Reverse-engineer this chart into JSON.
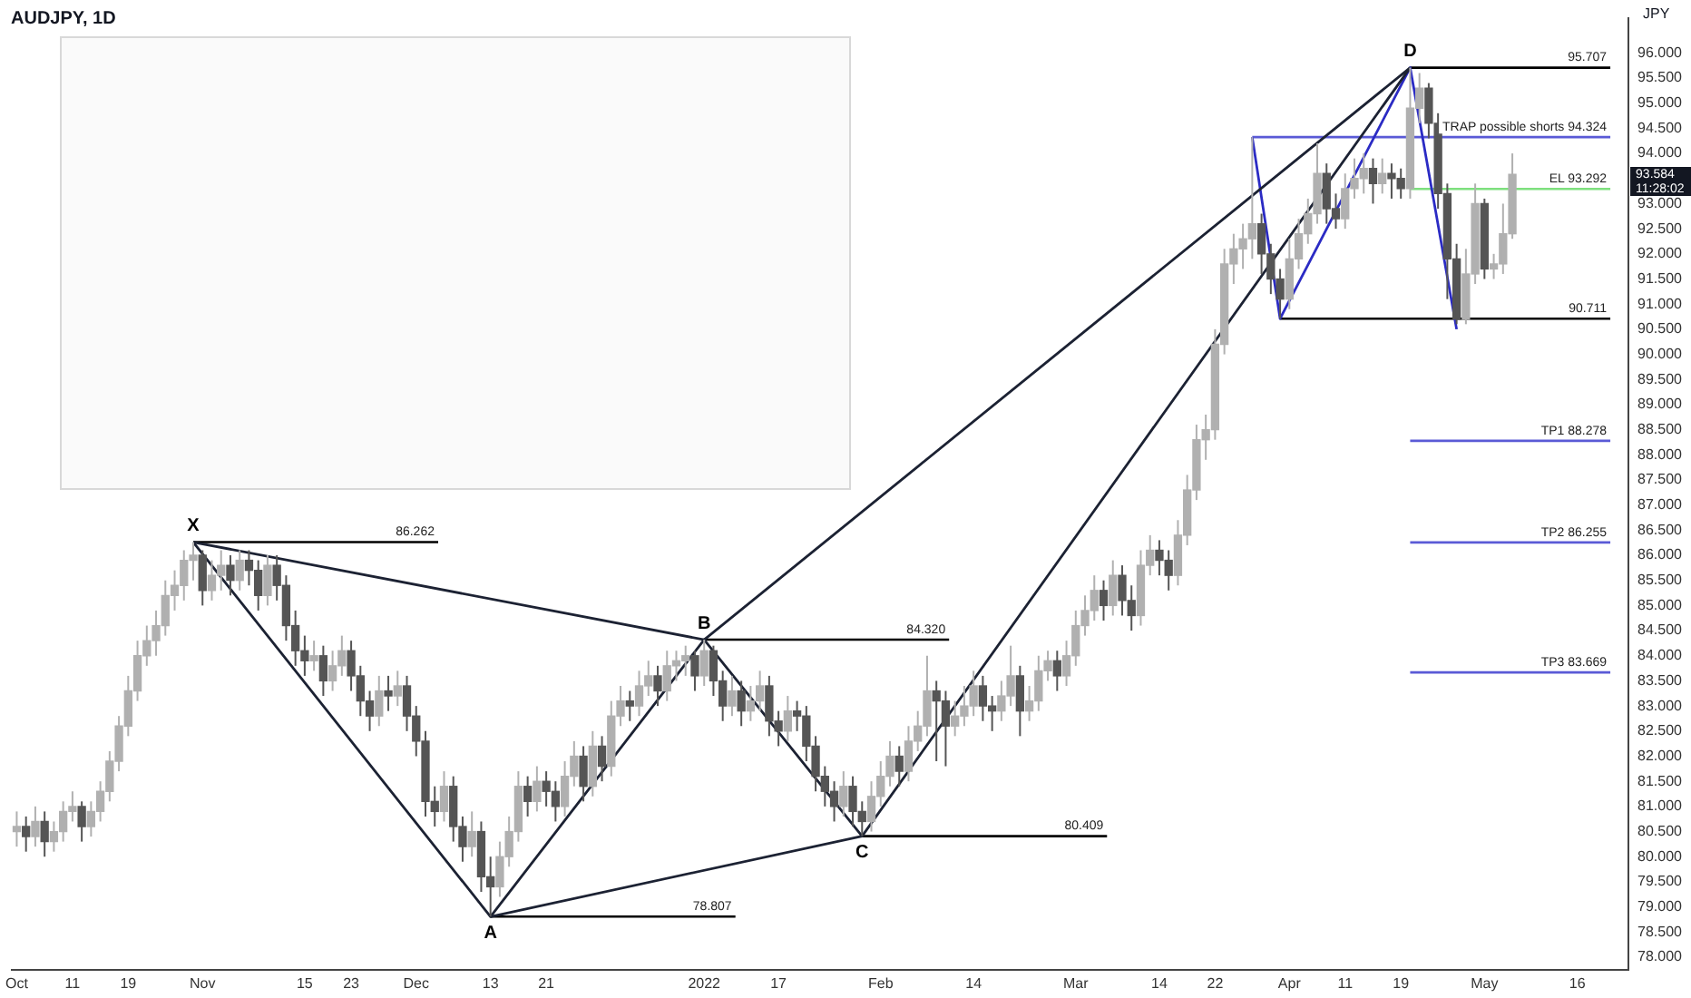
{
  "chart_data": {
    "type": "candlestick",
    "title": "AUDJPY, 1D",
    "ylabel": "JPY",
    "colors": [
      "#b0b0b0",
      "#555555",
      "#b0b0b0",
      "#555555",
      "#b0b0b0",
      "#b0b0b0",
      "#b0b0b0",
      "#555555",
      "#b0b0b0",
      "#b0b0b0",
      "#b0b0b0",
      "#b0b0b0",
      "#b0b0b0",
      "#b0b0b0",
      "#b0b0b0",
      "#b0b0b0",
      "#b0b0b0",
      "#b0b0b0",
      "#b0b0b0",
      "#b0b0b0",
      "#555555",
      "#b0b0b0",
      "#b0b0b0",
      "#555555",
      "#b0b0b0",
      "#555555",
      "#555555",
      "#b0b0b0",
      "#555555",
      "#555555",
      "#555555",
      "#555555",
      "#b0b0b0",
      "#555555",
      "#b0b0b0",
      "#b0b0b0",
      "#555555",
      "#555555",
      "#555555",
      "#b0b0b0",
      "#555555",
      "#b0b0b0",
      "#555555",
      "#555555",
      "#555555",
      "#555555",
      "#b0b0b0",
      "#555555",
      "#555555",
      "#b0b0b0",
      "#555555",
      "#555555",
      "#b0b0b0",
      "#b0b0b0",
      "#b0b0b0",
      "#555555",
      "#b0b0b0",
      "#555555",
      "#555555",
      "#b0b0b0",
      "#b0b0b0",
      "#555555",
      "#b0b0b0",
      "#555555",
      "#b0b0b0",
      "#b0b0b0",
      "#555555",
      "#b0b0b0",
      "#b0b0b0",
      "#555555",
      "#b0b0b0",
      "#b0b0b0",
      "#b0b0b0",
      "#555555",
      "#b0b0b0",
      "#555555",
      "#555555",
      "#b0b0b0",
      "#555555",
      "#b0b0b0",
      "#b0b0b0",
      "#555555",
      "#555555",
      "#b0b0b0",
      "#555555",
      "#555555",
      "#555555",
      "#555555",
      "#555555",
      "#b0b0b0",
      "#555555",
      "#555555",
      "#b0b0b0",
      "#b0b0b0",
      "#b0b0b0",
      "#555555",
      "#b0b0b0",
      "#b0b0b0",
      "#b0b0b0",
      "#555555",
      "#555555",
      "#b0b0b0",
      "#b0b0b0",
      "#b0b0b0",
      "#555555",
      "#555555",
      "#b0b0b0",
      "#b0b0b0",
      "#555555",
      "#b0b0b0",
      "#b0b0b0",
      "#b0b0b0",
      "#555555",
      "#b0b0b0",
      "#b0b0b0",
      "#b0b0b0",
      "#b0b0b0",
      "#555555",
      "#b0b0b0",
      "#555555",
      "#555555",
      "#b0b0b0",
      "#b0b0b0",
      "#555555",
      "#555555",
      "#b0b0b0",
      "#b0b0b0",
      "#b0b0b0",
      "#b0b0b0",
      "#b0b0b0",
      "#b0b0b0",
      "#b0b0b0",
      "#b0b0b0",
      "#b0b0b0",
      "#555555",
      "#555555",
      "#555555",
      "#b0b0b0",
      "#b0b0b0",
      "#b0b0b0",
      "#b0b0b0",
      "#555555",
      "#555555",
      "#b0b0b0",
      "#b0b0b0",
      "#b0b0b0",
      "#555555",
      "#b0b0b0",
      "#555555",
      "#555555",
      "#b0b0b0",
      "#b0b0b0",
      "#555555",
      "#555555",
      "#555555",
      "#555555",
      "#b0b0b0",
      "#b0b0b0",
      "#555555",
      "#b0b0b0",
      "#b0b0b0",
      "#b0b0b0",
      null,
      null,
      null,
      null,
      null,
      null,
      null,
      null,
      null,
      null,
      null,
      null
    ],
    "categories": [
      "Oct",
      null,
      null,
      null,
      null,
      null,
      "11",
      null,
      null,
      null,
      null,
      null,
      "19",
      null,
      null,
      null,
      null,
      null,
      null,
      null,
      "Nov",
      null,
      null,
      null,
      null,
      null,
      null,
      null,
      null,
      null,
      null,
      "15",
      null,
      null,
      null,
      null,
      "23",
      null,
      null,
      null,
      null,
      null,
      null,
      "Dec",
      null,
      null,
      null,
      null,
      null,
      null,
      null,
      "13",
      null,
      null,
      null,
      null,
      null,
      "21",
      null,
      null,
      null,
      null,
      null,
      null,
      null,
      null,
      null,
      null,
      null,
      null,
      null,
      null,
      null,
      null,
      "2022",
      null,
      null,
      null,
      null,
      null,
      null,
      null,
      "17",
      null,
      null,
      null,
      null,
      null,
      null,
      null,
      null,
      null,
      null,
      "Feb",
      null,
      null,
      null,
      null,
      null,
      null,
      null,
      null,
      null,
      "14",
      null,
      null,
      null,
      null,
      null,
      null,
      null,
      null,
      null,
      null,
      "Mar",
      null,
      null,
      null,
      null,
      null,
      null,
      null,
      null,
      "14",
      null,
      null,
      null,
      null,
      null,
      "22",
      null,
      null,
      null,
      null,
      null,
      null,
      null,
      "Apr",
      null,
      null,
      null,
      null,
      null,
      "11",
      null,
      null,
      null,
      null,
      null,
      "19",
      null,
      null,
      null,
      null,
      null,
      null,
      null,
      null,
      "May",
      null,
      null,
      null,
      null,
      null,
      null,
      null,
      null,
      null,
      "16",
      null,
      null,
      null,
      null,
      null
    ],
    "ohlc": [
      [
        80.5,
        80.9,
        80.2,
        80.6
      ],
      [
        80.6,
        80.8,
        80.1,
        80.4
      ],
      [
        80.4,
        81.0,
        80.2,
        80.7
      ],
      [
        80.7,
        80.9,
        80.0,
        80.3
      ],
      [
        80.3,
        80.7,
        80.1,
        80.5
      ],
      [
        80.5,
        81.1,
        80.3,
        80.9
      ],
      [
        80.9,
        81.3,
        80.7,
        81.0
      ],
      [
        81.0,
        81.1,
        80.3,
        80.6
      ],
      [
        80.6,
        81.1,
        80.4,
        80.9
      ],
      [
        80.9,
        81.5,
        80.7,
        81.3
      ],
      [
        81.3,
        82.1,
        81.1,
        81.9
      ],
      [
        81.9,
        82.8,
        81.7,
        82.6
      ],
      [
        82.6,
        83.6,
        82.4,
        83.3
      ],
      [
        83.3,
        84.3,
        83.1,
        84.0
      ],
      [
        84.0,
        84.6,
        83.8,
        84.3
      ],
      [
        84.3,
        84.9,
        84.0,
        84.6
      ],
      [
        84.6,
        85.5,
        84.4,
        85.2
      ],
      [
        85.2,
        85.7,
        84.9,
        85.4
      ],
      [
        85.4,
        86.1,
        85.1,
        85.9
      ],
      [
        85.9,
        86.262,
        85.5,
        86.0
      ],
      [
        86.0,
        86.1,
        85.0,
        85.3
      ],
      [
        85.3,
        85.9,
        85.1,
        85.6
      ],
      [
        85.6,
        86.1,
        85.3,
        85.8
      ],
      [
        85.8,
        86.0,
        85.2,
        85.5
      ],
      [
        85.5,
        86.1,
        85.3,
        85.9
      ],
      [
        85.9,
        86.1,
        85.4,
        85.7
      ],
      [
        85.7,
        85.9,
        84.9,
        85.2
      ],
      [
        85.2,
        86.0,
        85.0,
        85.8
      ],
      [
        85.8,
        86.0,
        85.1,
        85.4
      ],
      [
        85.4,
        85.6,
        84.3,
        84.6
      ],
      [
        84.6,
        84.9,
        83.8,
        84.1
      ],
      [
        84.1,
        84.4,
        83.6,
        83.9
      ],
      [
        83.9,
        84.3,
        83.7,
        84.0
      ],
      [
        84.0,
        84.2,
        83.2,
        83.5
      ],
      [
        83.5,
        84.1,
        83.3,
        83.8
      ],
      [
        83.8,
        84.4,
        83.6,
        84.1
      ],
      [
        84.1,
        84.3,
        83.3,
        83.6
      ],
      [
        83.6,
        83.8,
        82.8,
        83.1
      ],
      [
        83.1,
        83.3,
        82.5,
        82.8
      ],
      [
        82.8,
        83.6,
        82.6,
        83.3
      ],
      [
        83.3,
        83.6,
        82.9,
        83.2
      ],
      [
        83.2,
        83.7,
        83.0,
        83.4
      ],
      [
        83.4,
        83.6,
        82.5,
        82.8
      ],
      [
        82.8,
        83.0,
        82.0,
        82.3
      ],
      [
        82.3,
        82.5,
        80.8,
        81.1
      ],
      [
        81.1,
        81.4,
        80.6,
        80.9
      ],
      [
        80.9,
        81.7,
        80.7,
        81.4
      ],
      [
        81.4,
        81.6,
        80.3,
        80.6
      ],
      [
        80.6,
        80.8,
        79.9,
        80.2
      ],
      [
        80.2,
        80.9,
        80.0,
        80.5
      ],
      [
        80.5,
        80.7,
        79.3,
        79.6
      ],
      [
        79.6,
        80.0,
        78.807,
        79.4
      ],
      [
        79.4,
        80.3,
        79.2,
        80.0
      ],
      [
        80.0,
        80.8,
        79.8,
        80.5
      ],
      [
        80.5,
        81.7,
        80.3,
        81.4
      ],
      [
        81.4,
        81.6,
        80.8,
        81.1
      ],
      [
        81.1,
        81.8,
        80.9,
        81.5
      ],
      [
        81.5,
        81.7,
        81.0,
        81.3
      ],
      [
        81.3,
        81.5,
        80.7,
        81.0
      ],
      [
        81.0,
        81.9,
        80.8,
        81.6
      ],
      [
        81.6,
        82.3,
        81.4,
        82.0
      ],
      [
        82.0,
        82.2,
        81.1,
        81.4
      ],
      [
        81.4,
        82.5,
        81.2,
        82.2
      ],
      [
        82.2,
        82.4,
        81.5,
        81.8
      ],
      [
        81.8,
        83.1,
        81.6,
        82.8
      ],
      [
        82.8,
        83.4,
        82.6,
        83.1
      ],
      [
        83.1,
        83.3,
        82.7,
        83.0
      ],
      [
        83.0,
        83.7,
        82.8,
        83.4
      ],
      [
        83.4,
        83.9,
        83.2,
        83.6
      ],
      [
        83.6,
        83.8,
        83.0,
        83.3
      ],
      [
        83.3,
        84.1,
        83.1,
        83.8
      ],
      [
        83.8,
        84.1,
        83.5,
        83.9
      ],
      [
        83.9,
        84.2,
        83.6,
        84.0
      ],
      [
        84.0,
        84.1,
        83.3,
        83.6
      ],
      [
        83.6,
        84.32,
        83.4,
        84.1
      ],
      [
        84.1,
        84.2,
        83.2,
        83.5
      ],
      [
        83.5,
        83.7,
        82.7,
        83.0
      ],
      [
        83.0,
        83.6,
        82.8,
        83.3
      ],
      [
        83.3,
        83.5,
        82.6,
        82.9
      ],
      [
        82.9,
        83.4,
        82.7,
        83.1
      ],
      [
        83.1,
        83.7,
        82.9,
        83.4
      ],
      [
        83.4,
        83.6,
        82.4,
        82.7
      ],
      [
        82.7,
        82.9,
        82.2,
        82.5
      ],
      [
        82.5,
        83.2,
        82.3,
        82.9
      ],
      [
        82.9,
        83.1,
        82.5,
        82.8
      ],
      [
        82.8,
        83.0,
        81.9,
        82.2
      ],
      [
        82.2,
        82.4,
        81.3,
        81.6
      ],
      [
        81.6,
        81.8,
        81.0,
        81.3
      ],
      [
        81.3,
        81.5,
        80.7,
        81.0
      ],
      [
        81.0,
        81.7,
        80.8,
        81.4
      ],
      [
        81.4,
        81.6,
        80.6,
        80.9
      ],
      [
        80.9,
        81.1,
        80.409,
        80.7
      ],
      [
        80.7,
        81.5,
        80.5,
        81.2
      ],
      [
        81.2,
        81.9,
        81.0,
        81.6
      ],
      [
        81.6,
        82.3,
        81.4,
        82.0
      ],
      [
        82.0,
        82.2,
        81.4,
        81.7
      ],
      [
        81.7,
        82.6,
        81.5,
        82.3
      ],
      [
        82.3,
        82.9,
        82.1,
        82.6
      ],
      [
        82.6,
        84.0,
        82.4,
        83.3
      ],
      [
        83.3,
        83.5,
        81.9,
        83.1
      ],
      [
        83.1,
        83.3,
        81.8,
        82.6
      ],
      [
        82.6,
        83.1,
        82.4,
        82.8
      ],
      [
        82.8,
        83.4,
        82.6,
        83.0
      ],
      [
        83.0,
        83.7,
        82.8,
        83.4
      ],
      [
        83.4,
        83.6,
        82.7,
        83.0
      ],
      [
        83.0,
        83.2,
        82.5,
        82.9
      ],
      [
        82.9,
        83.5,
        82.7,
        83.2
      ],
      [
        83.2,
        84.2,
        83.0,
        83.6
      ],
      [
        83.6,
        83.8,
        82.4,
        82.9
      ],
      [
        82.9,
        83.4,
        82.7,
        83.1
      ],
      [
        83.1,
        84.0,
        82.9,
        83.7
      ],
      [
        83.7,
        84.1,
        83.5,
        83.9
      ],
      [
        83.9,
        84.1,
        83.3,
        83.6
      ],
      [
        83.6,
        84.3,
        83.4,
        84.0
      ],
      [
        84.0,
        84.9,
        83.8,
        84.6
      ],
      [
        84.6,
        85.2,
        84.4,
        84.9
      ],
      [
        84.9,
        85.6,
        84.7,
        85.3
      ],
      [
        85.3,
        85.5,
        84.7,
        85.0
      ],
      [
        85.0,
        85.9,
        84.8,
        85.6
      ],
      [
        85.6,
        85.8,
        84.8,
        85.1
      ],
      [
        85.1,
        85.4,
        84.5,
        84.8
      ],
      [
        84.8,
        86.1,
        84.6,
        85.8
      ],
      [
        85.8,
        86.4,
        85.6,
        86.1
      ],
      [
        86.1,
        86.3,
        85.6,
        85.9
      ],
      [
        85.9,
        86.1,
        85.3,
        85.6
      ],
      [
        85.6,
        86.7,
        85.4,
        86.4
      ],
      [
        86.4,
        87.6,
        86.2,
        87.3
      ],
      [
        87.3,
        88.6,
        87.1,
        88.3
      ],
      [
        88.3,
        88.8,
        87.9,
        88.5
      ],
      [
        88.5,
        90.5,
        88.3,
        90.2
      ],
      [
        90.2,
        92.1,
        90.0,
        91.8
      ],
      [
        91.8,
        92.4,
        91.4,
        92.1
      ],
      [
        92.1,
        92.6,
        91.7,
        92.3
      ],
      [
        92.3,
        94.324,
        91.9,
        92.6
      ],
      [
        92.6,
        92.8,
        91.6,
        92.0
      ],
      [
        92.0,
        92.2,
        91.2,
        91.5
      ],
      [
        91.5,
        91.7,
        90.711,
        91.1
      ],
      [
        91.1,
        92.3,
        90.9,
        91.9
      ],
      [
        91.9,
        92.7,
        91.7,
        92.4
      ],
      [
        92.4,
        93.1,
        92.2,
        92.8
      ],
      [
        92.8,
        94.2,
        92.6,
        93.6
      ],
      [
        93.6,
        93.8,
        92.6,
        92.9
      ],
      [
        92.9,
        93.2,
        92.5,
        92.7
      ],
      [
        92.7,
        93.6,
        92.5,
        93.3
      ],
      [
        93.3,
        93.9,
        93.1,
        93.5
      ],
      [
        93.5,
        94.0,
        93.2,
        93.7
      ],
      [
        93.7,
        93.9,
        93.0,
        93.4
      ],
      [
        93.4,
        93.9,
        93.2,
        93.6
      ],
      [
        93.6,
        93.8,
        93.1,
        93.5
      ],
      [
        93.5,
        93.7,
        93.1,
        93.3
      ],
      [
        93.3,
        95.707,
        93.1,
        94.9
      ],
      [
        94.9,
        95.6,
        94.6,
        95.3
      ],
      [
        95.3,
        95.4,
        94.3,
        94.6
      ],
      [
        94.6,
        94.8,
        92.9,
        93.2
      ],
      [
        93.2,
        93.4,
        91.1,
        91.9
      ],
      [
        91.9,
        92.2,
        90.6,
        90.7
      ],
      [
        90.7,
        92.1,
        90.6,
        91.6
      ],
      [
        91.6,
        93.4,
        91.4,
        93.0
      ],
      [
        93.0,
        93.1,
        91.5,
        91.7
      ],
      [
        91.7,
        92.0,
        91.5,
        91.8
      ],
      [
        91.8,
        93.0,
        91.6,
        92.4
      ],
      [
        92.4,
        94.0,
        92.3,
        93.584
      ],
      null,
      null,
      null,
      null,
      null,
      null,
      null,
      null,
      null,
      null,
      null,
      null
    ],
    "series": [
      {
        "type": "line",
        "color": "#1c2233",
        "values": [
          null,
          null,
          null,
          null,
          null,
          null,
          null,
          null,
          null,
          null,
          null,
          null,
          null,
          null,
          null,
          null,
          null,
          null,
          null,
          86.262,
          null,
          null,
          null,
          null,
          null,
          null,
          null,
          null,
          null,
          null,
          null,
          null,
          null,
          null,
          null,
          null,
          null,
          null,
          null,
          null,
          null,
          null,
          null,
          null,
          null,
          null,
          null,
          null,
          null,
          null,
          null,
          78.807,
          null,
          null,
          null,
          null,
          null,
          null,
          null,
          null,
          null,
          null,
          null,
          null,
          null,
          null,
          null,
          null,
          null,
          null,
          null,
          null,
          null,
          null,
          84.32,
          null,
          null,
          null,
          null,
          null,
          null,
          null,
          null,
          null,
          null,
          null,
          null,
          null,
          null,
          null,
          null,
          80.409,
          null,
          null,
          null,
          null,
          null,
          null,
          null,
          null,
          null,
          null,
          null,
          null,
          null,
          null,
          null,
          null,
          null,
          null,
          null,
          null,
          null,
          null,
          null,
          null,
          null,
          null,
          null,
          null,
          null,
          null,
          null,
          null,
          null,
          null,
          null,
          null,
          null,
          null,
          null,
          null,
          null,
          null,
          null,
          null,
          null,
          null,
          null,
          null,
          null,
          null,
          null,
          null,
          null,
          null,
          null,
          null,
          null,
          null,
          95.707,
          null,
          null,
          null,
          null,
          null,
          null,
          null,
          null,
          null,
          null,
          null,
          null,
          null,
          null,
          null,
          null,
          null,
          null,
          null,
          null,
          null,
          null,
          null
        ]
      },
      {
        "type": "line",
        "color": "#1c2233",
        "values": [
          null,
          null,
          null,
          null,
          null,
          null,
          null,
          null,
          null,
          null,
          null,
          null,
          null,
          null,
          null,
          null,
          null,
          null,
          null,
          86.262,
          null,
          null,
          null,
          null,
          null,
          null,
          null,
          null,
          null,
          null,
          null,
          null,
          null,
          null,
          null,
          null,
          null,
          null,
          null,
          null,
          null,
          null,
          null,
          null,
          null,
          null,
          null,
          null,
          null,
          null,
          null,
          null,
          null,
          null,
          null,
          null,
          null,
          null,
          null,
          null,
          null,
          null,
          null,
          null,
          null,
          null,
          null,
          null,
          null,
          null,
          null,
          null,
          null,
          null,
          84.32,
          null,
          null,
          null,
          null,
          null,
          null,
          null,
          null,
          null,
          null,
          null,
          null,
          null,
          null,
          null,
          null,
          null,
          null,
          null,
          null,
          null,
          null,
          null,
          null,
          null,
          null,
          null,
          null,
          null,
          null,
          null,
          null,
          null,
          null,
          null,
          null,
          null,
          null,
          null,
          null,
          null,
          null,
          null,
          null,
          null,
          null,
          null,
          null,
          null,
          null,
          null,
          null,
          null,
          null,
          null,
          null,
          null,
          null,
          null,
          null,
          null,
          null,
          null,
          null,
          null,
          null,
          null,
          null,
          null,
          null,
          null,
          null,
          null,
          null,
          null,
          95.707,
          null,
          null,
          null,
          null,
          null,
          null,
          null,
          null,
          null,
          null,
          null,
          null,
          null,
          null,
          null,
          null,
          null,
          null,
          null,
          null,
          null,
          null,
          null
        ]
      },
      {
        "type": "line",
        "color": "#1c2233",
        "values": [
          null,
          null,
          null,
          null,
          null,
          null,
          null,
          null,
          null,
          null,
          null,
          null,
          null,
          null,
          null,
          null,
          null,
          null,
          null,
          null,
          null,
          null,
          null,
          null,
          null,
          null,
          null,
          null,
          null,
          null,
          null,
          null,
          null,
          null,
          null,
          null,
          null,
          null,
          null,
          null,
          null,
          null,
          null,
          null,
          null,
          null,
          null,
          null,
          null,
          null,
          null,
          78.807,
          null,
          null,
          null,
          null,
          null,
          null,
          null,
          null,
          null,
          null,
          null,
          null,
          null,
          null,
          null,
          null,
          null,
          null,
          null,
          null,
          null,
          null,
          null,
          null,
          null,
          null,
          null,
          null,
          null,
          null,
          null,
          null,
          null,
          null,
          null,
          null,
          null,
          null,
          null,
          80.409,
          null,
          null,
          null,
          null,
          null,
          null,
          null,
          null,
          null,
          null,
          null,
          null,
          null,
          null,
          null,
          null,
          null,
          null,
          null,
          null,
          null,
          null,
          null,
          null,
          null,
          null,
          null,
          null,
          null,
          null,
          null,
          null,
          null,
          null,
          null,
          null,
          null,
          null,
          null,
          null,
          null,
          null,
          null,
          null,
          null,
          null,
          null,
          null,
          null,
          null,
          null,
          null,
          null,
          null,
          null,
          null,
          null,
          null,
          null,
          null,
          null,
          null,
          null,
          null,
          null,
          null,
          null,
          null,
          null,
          null,
          null,
          null,
          null,
          null,
          null,
          null,
          null,
          null,
          null,
          null,
          null,
          null
        ]
      },
      {
        "type": "line",
        "color": "#2b2bc4",
        "values": [
          null,
          null,
          null,
          null,
          null,
          null,
          null,
          null,
          null,
          null,
          null,
          null,
          null,
          null,
          null,
          null,
          null,
          null,
          null,
          null,
          null,
          null,
          null,
          null,
          null,
          null,
          null,
          null,
          null,
          null,
          null,
          null,
          null,
          null,
          null,
          null,
          null,
          null,
          null,
          null,
          null,
          null,
          null,
          null,
          null,
          null,
          null,
          null,
          null,
          null,
          null,
          null,
          null,
          null,
          null,
          null,
          null,
          null,
          null,
          null,
          null,
          null,
          null,
          null,
          null,
          null,
          null,
          null,
          null,
          null,
          null,
          null,
          null,
          null,
          null,
          null,
          null,
          null,
          null,
          null,
          null,
          null,
          null,
          null,
          null,
          null,
          null,
          null,
          null,
          null,
          null,
          null,
          null,
          null,
          null,
          null,
          null,
          null,
          null,
          null,
          null,
          null,
          null,
          null,
          null,
          null,
          null,
          null,
          null,
          null,
          null,
          null,
          null,
          null,
          null,
          null,
          null,
          null,
          null,
          null,
          null,
          null,
          null,
          null,
          null,
          null,
          null,
          null,
          null,
          null,
          null,
          null,
          null,
          94.324,
          null,
          null,
          90.711,
          null,
          null,
          null,
          null,
          null,
          null,
          null,
          null,
          null,
          null,
          null,
          null,
          null,
          95.707,
          null,
          null,
          null,
          null,
          90.5,
          null,
          null,
          null,
          null,
          null,
          null,
          null,
          null,
          null,
          null,
          null,
          null,
          null,
          null,
          null,
          null,
          null,
          null
        ]
      }
    ],
    "ref_lines": [
      {
        "axis": "y",
        "value": 86.262,
        "label": "86.262",
        "color": "#000000"
      },
      {
        "axis": "y",
        "value": 78.807,
        "label": "78.807",
        "color": "#000000"
      },
      {
        "axis": "y",
        "value": 84.32,
        "label": "84.320",
        "color": "#000000"
      },
      {
        "axis": "y",
        "value": 80.409,
        "label": "80.409",
        "color": "#000000"
      },
      {
        "axis": "y",
        "value": 95.707,
        "label": "95.707",
        "color": "#000000"
      },
      {
        "axis": "y",
        "value": 90.711,
        "label": "90.711",
        "color": "#000000"
      },
      {
        "axis": "y",
        "value": 94.324,
        "label": "TRAP possible shorts 94.324",
        "color": "#5a5ad6"
      },
      {
        "axis": "y",
        "value": 93.292,
        "label": "EL 93.292",
        "color": "#7ee07e"
      },
      {
        "axis": "y",
        "value": 88.278,
        "label": "TP1 88.278",
        "color": "#5a5ad6"
      },
      {
        "axis": "y",
        "value": 86.255,
        "label": "TP2 86.255",
        "color": "#5a5ad6"
      },
      {
        "axis": "y",
        "value": 83.669,
        "label": "TP3 83.669",
        "color": "#5a5ad6"
      }
    ],
    "annotations": [
      {
        "text": "X",
        "y": 86.262
      },
      {
        "text": "A",
        "y": 78.807
      },
      {
        "text": "B",
        "y": 84.32
      },
      {
        "text": "C",
        "y": 80.409
      },
      {
        "text": "D",
        "y": 95.707
      },
      "93.584",
      "11:28:02"
    ],
    "ylim": [
      77.75,
      96.7
    ],
    "yticks": [
      {
        "value": 78,
        "label": "78.000"
      },
      {
        "value": 78.5,
        "label": "78.500"
      },
      {
        "value": 79,
        "label": "79.000"
      },
      {
        "value": 79.5,
        "label": "79.500"
      },
      {
        "value": 80,
        "label": "80.000"
      },
      {
        "value": 80.5,
        "label": "80.500"
      },
      {
        "value": 81,
        "label": "81.000"
      },
      {
        "value": 81.5,
        "label": "81.500"
      },
      {
        "value": 82,
        "label": "82.000"
      },
      {
        "value": 82.5,
        "label": "82.500"
      },
      {
        "value": 83,
        "label": "83.000"
      },
      {
        "value": 83.5,
        "label": "83.500"
      },
      {
        "value": 84,
        "label": "84.000"
      },
      {
        "value": 84.5,
        "label": "84.500"
      },
      {
        "value": 85,
        "label": "85.000"
      },
      {
        "value": 85.5,
        "label": "85.500"
      },
      {
        "value": 86,
        "label": "86.000"
      },
      {
        "value": 86.5,
        "label": "86.500"
      },
      {
        "value": 87,
        "label": "87.000"
      },
      {
        "value": 87.5,
        "label": "87.500"
      },
      {
        "value": 88,
        "label": "88.000"
      },
      {
        "value": 88.5,
        "label": "88.500"
      },
      {
        "value": 89,
        "label": "89.000"
      },
      {
        "value": 89.5,
        "label": "89.500"
      },
      {
        "value": 90,
        "label": "90.000"
      },
      {
        "value": 90.5,
        "label": "90.500"
      },
      {
        "value": 91,
        "label": "91.000"
      },
      {
        "value": 91.5,
        "label": "91.500"
      },
      {
        "value": 92,
        "label": "92.000"
      },
      {
        "value": 92.5,
        "label": "92.500"
      },
      {
        "value": 93,
        "label": "93.000"
      },
      {
        "value": 94,
        "label": "94.000"
      },
      {
        "value": 94.5,
        "label": "94.500"
      },
      {
        "value": 95,
        "label": "95.000"
      },
      {
        "value": 95.5,
        "label": "95.500"
      },
      {
        "value": 96,
        "label": "96.000"
      }
    ]
  }
}
